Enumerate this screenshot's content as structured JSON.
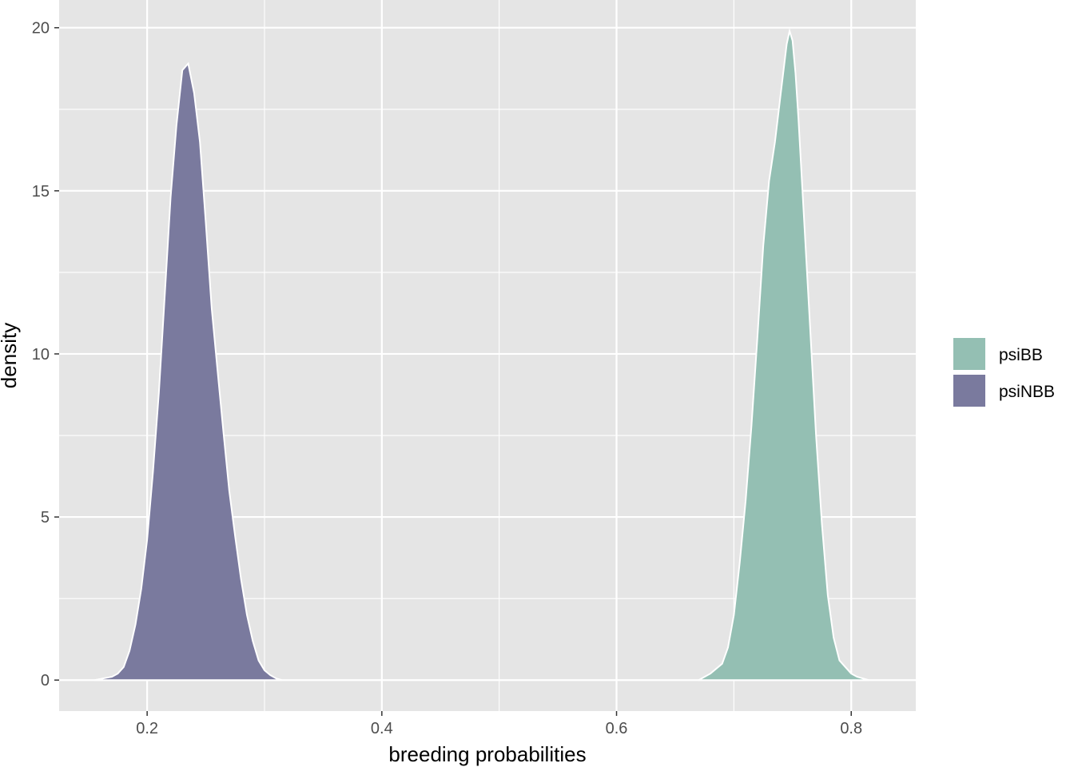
{
  "chart_data": {
    "type": "area",
    "title": "",
    "xlabel": "breeding probabilities",
    "ylabel": "density",
    "xlim": [
      0.125,
      0.855
    ],
    "ylim": [
      -0.95,
      20.85
    ],
    "x_ticks": [
      0.2,
      0.4,
      0.6,
      0.8
    ],
    "x_tick_labels": [
      "0.2",
      "0.4",
      "0.6",
      "0.8"
    ],
    "x_minor_ticks": [
      0.3,
      0.5,
      0.7
    ],
    "y_ticks": [
      0,
      5,
      10,
      15,
      20
    ],
    "y_tick_labels": [
      "0",
      "5",
      "10",
      "15",
      "20"
    ],
    "y_minor_ticks": [
      2.5,
      7.5,
      12.5,
      17.5
    ],
    "grid": true,
    "legend_position": "right",
    "series": [
      {
        "name": "psiBB",
        "color": "#94bfb3",
        "x": [
          0.67,
          0.68,
          0.69,
          0.695,
          0.7,
          0.705,
          0.71,
          0.715,
          0.72,
          0.725,
          0.73,
          0.735,
          0.74,
          0.745,
          0.7475,
          0.75,
          0.7525,
          0.755,
          0.76,
          0.765,
          0.77,
          0.775,
          0.78,
          0.785,
          0.79,
          0.795,
          0.8,
          0.805,
          0.81,
          0.815
        ],
        "y": [
          0.0,
          0.2,
          0.5,
          1.0,
          2.0,
          3.6,
          5.5,
          7.8,
          10.5,
          13.3,
          15.3,
          16.5,
          18.0,
          19.5,
          19.9,
          19.6,
          18.6,
          17.2,
          14.0,
          10.8,
          7.5,
          4.8,
          2.6,
          1.3,
          0.6,
          0.4,
          0.2,
          0.1,
          0.05,
          0.0
        ]
      },
      {
        "name": "psiNBB",
        "color": "#7a7a9e",
        "x": [
          0.155,
          0.17,
          0.175,
          0.18,
          0.185,
          0.19,
          0.195,
          0.2,
          0.205,
          0.21,
          0.215,
          0.22,
          0.225,
          0.23,
          0.235,
          0.24,
          0.245,
          0.25,
          0.255,
          0.26,
          0.265,
          0.27,
          0.275,
          0.28,
          0.285,
          0.29,
          0.295,
          0.3,
          0.305,
          0.31,
          0.315
        ],
        "y": [
          0.0,
          0.1,
          0.2,
          0.4,
          0.9,
          1.7,
          2.8,
          4.3,
          6.4,
          8.8,
          11.8,
          14.8,
          17.0,
          18.7,
          18.9,
          18.0,
          16.5,
          14.0,
          11.4,
          9.5,
          7.6,
          5.8,
          4.4,
          3.1,
          2.0,
          1.2,
          0.6,
          0.3,
          0.15,
          0.05,
          0.0
        ]
      }
    ]
  }
}
